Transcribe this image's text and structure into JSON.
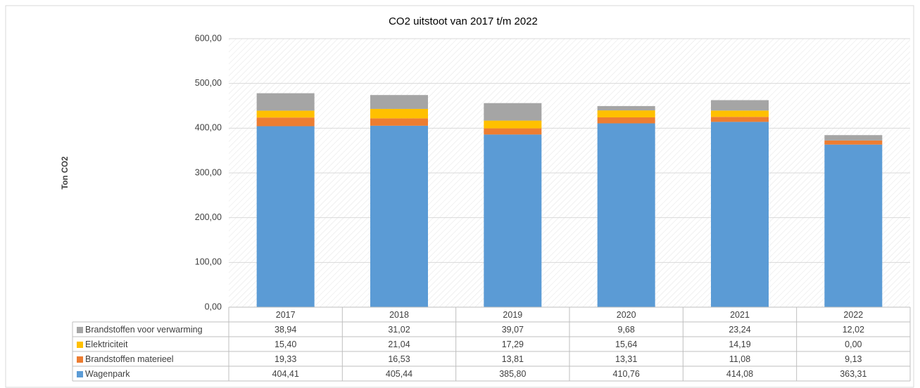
{
  "chart_data": {
    "type": "stacked_bar",
    "title": "CO2 uitstoot van 2017 t/m 2022",
    "y_label": "Ton CO2",
    "categories": [
      "2017",
      "2018",
      "2019",
      "2020",
      "2021",
      "2022"
    ],
    "series": [
      {
        "name": "Wagenpark",
        "color": "#5b9bd5",
        "values": [
          404.41,
          405.44,
          385.8,
          410.76,
          414.08,
          363.31
        ],
        "value_labels": [
          "404,41",
          "405,44",
          "385,80",
          "410,76",
          "414,08",
          "363,31"
        ]
      },
      {
        "name": "Brandstoffen materieel",
        "color": "#ed7d31",
        "values": [
          19.33,
          16.53,
          13.81,
          13.31,
          11.08,
          9.13
        ],
        "value_labels": [
          "19,33",
          "16,53",
          "13,81",
          "13,31",
          "11,08",
          "9,13"
        ]
      },
      {
        "name": "Elektriciteit",
        "color": "#ffc000",
        "values": [
          15.4,
          21.04,
          17.29,
          15.64,
          14.19,
          0.0
        ],
        "value_labels": [
          "15,40",
          "21,04",
          "17,29",
          "15,64",
          "14,19",
          "0,00"
        ]
      },
      {
        "name": "Brandstoffen voor verwarming",
        "color": "#a5a5a5",
        "values": [
          38.94,
          31.02,
          39.07,
          9.68,
          23.24,
          12.02
        ],
        "value_labels": [
          "38,94",
          "31,02",
          "39,07",
          "9,68",
          "23,24",
          "12,02"
        ]
      }
    ],
    "ylim": [
      0,
      600
    ],
    "yticks": [
      {
        "value": 0,
        "label": "0,00"
      },
      {
        "value": 100,
        "label": "100,00"
      },
      {
        "value": 200,
        "label": "200,00"
      },
      {
        "value": 300,
        "label": "300,00"
      },
      {
        "value": 400,
        "label": "400,00"
      },
      {
        "value": 500,
        "label": "500,00"
      },
      {
        "value": 600,
        "label": "600,00"
      }
    ],
    "grid": true
  }
}
